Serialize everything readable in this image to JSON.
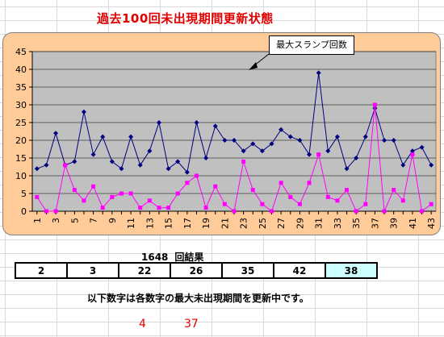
{
  "title": "過去100回未出現期間更新状態",
  "callout": {
    "text": "最大スランプ回数"
  },
  "draw": {
    "number": "1648",
    "label": "回結果"
  },
  "results": [
    {
      "value": "2",
      "bonus": false
    },
    {
      "value": "3",
      "bonus": false
    },
    {
      "value": "22",
      "bonus": false
    },
    {
      "value": "26",
      "bonus": false
    },
    {
      "value": "35",
      "bonus": false
    },
    {
      "value": "42",
      "bonus": false
    },
    {
      "value": "38",
      "bonus": true
    }
  ],
  "note": "以下数字は各数字の最大未出現期間を更新中です。",
  "updating": [
    "4",
    "37"
  ],
  "colors": {
    "plot_bg": "#c0c0c0",
    "chart_bg": "#ffcc99",
    "max_series": "#000080",
    "current_series": "#ff00ff",
    "title": "#e00000",
    "bonus_cell": "#ccffff"
  },
  "chart_data": {
    "type": "line",
    "x": [
      1,
      2,
      3,
      4,
      5,
      6,
      7,
      8,
      9,
      10,
      11,
      12,
      13,
      14,
      15,
      16,
      17,
      18,
      19,
      20,
      21,
      22,
      23,
      24,
      25,
      26,
      27,
      28,
      29,
      30,
      31,
      32,
      33,
      34,
      35,
      36,
      37,
      38,
      39,
      40,
      41,
      42,
      43
    ],
    "xtick_labels": [
      "1",
      "3",
      "5",
      "7",
      "9",
      "11",
      "13",
      "15",
      "17",
      "19",
      "21",
      "23",
      "25",
      "27",
      "29",
      "31",
      "33",
      "35",
      "37",
      "39",
      "41",
      "43"
    ],
    "ylim": [
      0,
      45
    ],
    "yticks": [
      0,
      5,
      10,
      15,
      20,
      25,
      30,
      35,
      40,
      45
    ],
    "grid": true,
    "series": [
      {
        "values": [
          12,
          13,
          22,
          13,
          14,
          28,
          16,
          21,
          14,
          12,
          21,
          13,
          17,
          25,
          12,
          14,
          11,
          25,
          15,
          24,
          20,
          20,
          17,
          19,
          17,
          19,
          23,
          21,
          20,
          16,
          39,
          17,
          21,
          12,
          15,
          21,
          29,
          20,
          20,
          13,
          17,
          18,
          13
        ]
      },
      {
        "values": [
          4,
          0,
          0,
          13,
          6,
          3,
          7,
          1,
          4,
          5,
          5,
          1,
          3,
          1,
          1,
          5,
          8,
          10,
          1,
          7,
          2,
          0,
          14,
          6,
          2,
          0,
          8,
          4,
          2,
          8,
          16,
          4,
          3,
          6,
          0,
          2,
          30,
          0,
          6,
          3,
          16,
          0,
          2
        ]
      }
    ]
  }
}
